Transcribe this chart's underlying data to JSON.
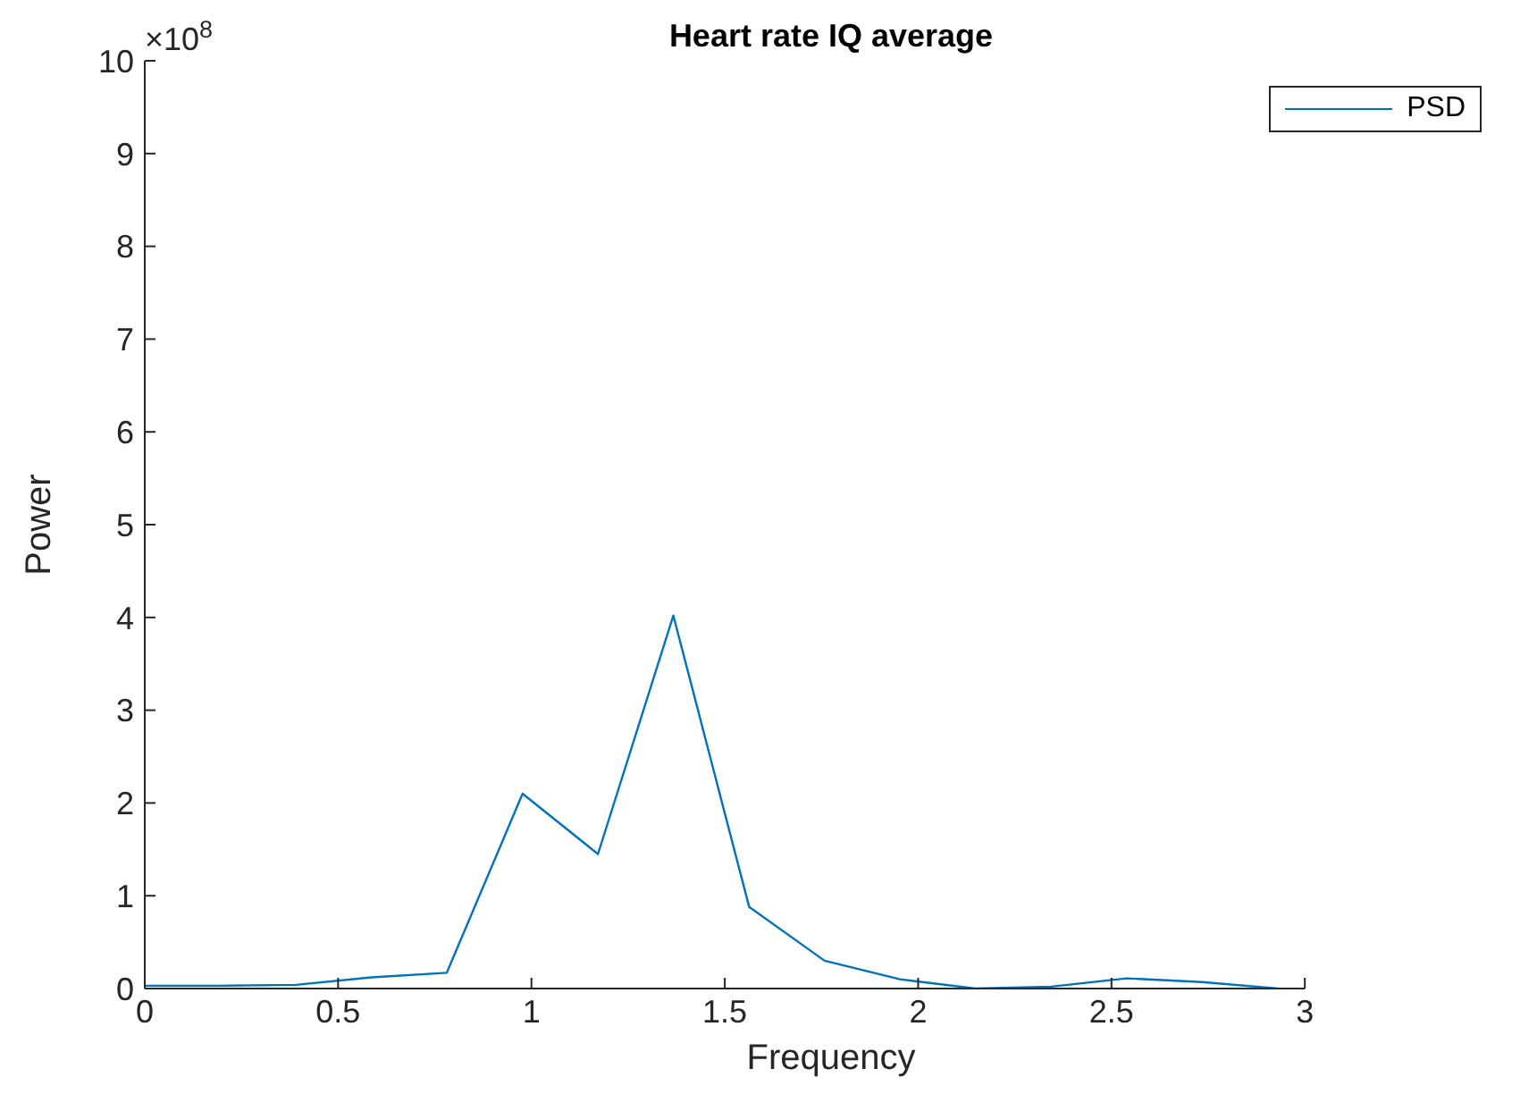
{
  "chart_data": {
    "type": "line",
    "title": "Heart rate IQ average",
    "xlabel": "Frequency",
    "ylabel": "Power",
    "annotations": [
      "×10$^{8}$"
    ],
    "x": [
      0,
      0.195,
      0.391,
      0.586,
      0.781,
      0.977,
      1.172,
      1.367,
      1.563,
      1.758,
      1.953,
      2.148,
      2.344,
      2.539,
      2.734,
      2.93
    ],
    "series": [
      {
        "name": "PSD",
        "color": "#0072bd",
        "values": [
          0.03,
          0.03,
          0.04,
          0.12,
          0.17,
          2.1,
          1.45,
          4.02,
          0.88,
          0.3,
          0.1,
          0.0,
          0.02,
          0.11,
          0.07,
          0.0
        ]
      }
    ],
    "xlim": [
      0,
      3
    ],
    "xticks": [
      0,
      0.5,
      1,
      1.5,
      2,
      2.5,
      3
    ],
    "ylim": [
      0,
      10
    ],
    "yticks": [
      0,
      1,
      2,
      3,
      4,
      5,
      6,
      7,
      8,
      9,
      10
    ],
    "legend": "top right",
    "marker": "none",
    "line_style": "solid",
    "grid": false
  }
}
